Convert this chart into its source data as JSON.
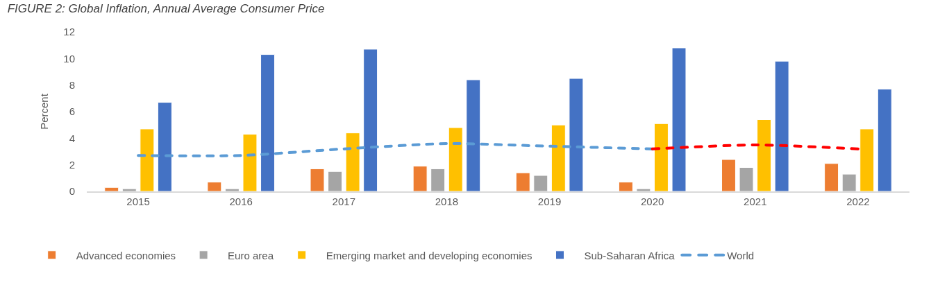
{
  "chart_data": {
    "type": "bar",
    "title": "FIGURE 2: Global Inflation, Annual Average Consumer Price",
    "ylabel": "Percent",
    "categories": [
      "2015",
      "2016",
      "2017",
      "2018",
      "2019",
      "2020",
      "2021",
      "2022"
    ],
    "series": [
      {
        "name": "Advanced economies",
        "color": "#ed7d31",
        "values": [
          0.3,
          0.7,
          1.7,
          1.9,
          1.4,
          0.7,
          2.4,
          2.1
        ]
      },
      {
        "name": "Euro area",
        "color": "#a5a5a5",
        "values": [
          0.2,
          0.2,
          1.5,
          1.7,
          1.2,
          0.2,
          1.8,
          1.3
        ]
      },
      {
        "name": "Emerging market and developing economies",
        "color": "#ffc000",
        "values": [
          4.7,
          4.3,
          4.4,
          4.8,
          5.0,
          5.1,
          5.4,
          4.7
        ]
      },
      {
        "name": "Sub-Saharan Africa",
        "color": "#4472c4",
        "values": [
          6.7,
          10.3,
          10.7,
          8.4,
          8.5,
          10.8,
          9.8,
          7.7
        ]
      },
      {
        "name": "World",
        "type": "line",
        "line_style": "dashed",
        "color": "#5b9bd5",
        "values": [
          2.7,
          2.7,
          3.2,
          3.6,
          3.4,
          3.2,
          null,
          null
        ]
      },
      {
        "type": "line",
        "line_style": "dashed",
        "color": "#ff0000",
        "values": [
          null,
          null,
          null,
          null,
          null,
          3.2,
          3.5,
          3.2
        ]
      }
    ],
    "ylim": [
      0,
      12
    ],
    "yticks": [
      0,
      2,
      4,
      6,
      8,
      10,
      12
    ],
    "legend": "bottom"
  }
}
